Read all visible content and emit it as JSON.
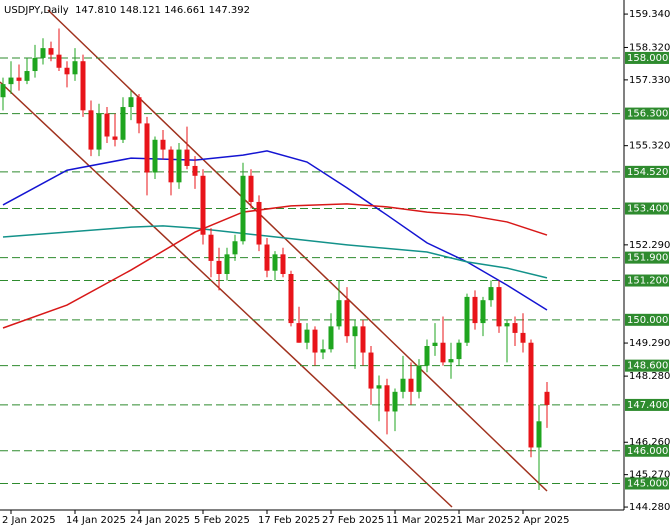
{
  "chart_data": {
    "type": "candlestick",
    "title": "USDJPY,Daily  147.810 148.121 146.661 147.392",
    "categories": [
      null,
      "2 Jan 2025",
      null,
      null,
      null,
      null,
      null,
      null,
      null,
      "14 Jan 2025",
      null,
      null,
      null,
      null,
      null,
      null,
      null,
      "24 Jan 2025",
      null,
      null,
      null,
      null,
      null,
      null,
      null,
      "5 Feb 2025",
      null,
      null,
      null,
      null,
      null,
      null,
      null,
      "17 Feb 2025",
      null,
      null,
      null,
      null,
      null,
      null,
      null,
      "27 Feb 2025",
      null,
      null,
      null,
      null,
      null,
      null,
      null,
      "11 Mar 2025",
      null,
      null,
      null,
      null,
      null,
      null,
      null,
      "21 Mar 2025",
      null,
      null,
      null,
      null,
      null,
      null,
      null,
      "2 Apr 2025",
      null,
      null,
      null
    ],
    "open": [
      156.8,
      157.2,
      157.4,
      157.3,
      157.6,
      158.0,
      158.3,
      158.1,
      157.7,
      157.5,
      157.9,
      156.4,
      155.2,
      156.3,
      155.6,
      155.5,
      156.5,
      156.8,
      156.0,
      154.5,
      155.5,
      155.2,
      154.2,
      155.2,
      154.7,
      154.4,
      152.6,
      151.8,
      151.4,
      152.0,
      152.4,
      154.4,
      153.6,
      152.3,
      151.5,
      152.0,
      151.4,
      149.9,
      149.3,
      149.7,
      149.0,
      149.1,
      149.8,
      150.6,
      149.5,
      149.8,
      149.0,
      147.9,
      148.0,
      147.2,
      147.8,
      148.2,
      147.8,
      148.6,
      149.2,
      149.3,
      148.7,
      148.8,
      149.3,
      150.7,
      149.9,
      150.6,
      151.0,
      149.8,
      149.9,
      149.6,
      149.3,
      146.1,
      147.8
    ],
    "high": [
      157.4,
      157.9,
      157.8,
      158.0,
      158.4,
      158.6,
      158.5,
      158.9,
      157.9,
      158.3,
      158.1,
      156.7,
      156.6,
      156.5,
      156.3,
      156.8,
      157.0,
      156.9,
      156.2,
      155.6,
      155.8,
      155.3,
      155.4,
      155.9,
      155.0,
      154.6,
      152.8,
      152.2,
      152.2,
      152.6,
      154.8,
      154.6,
      153.8,
      152.5,
      152.1,
      152.2,
      151.5,
      150.4,
      149.9,
      149.8,
      149.4,
      150.2,
      151.2,
      151.0,
      150.0,
      150.0,
      149.2,
      148.3,
      148.2,
      147.9,
      148.9,
      148.7,
      148.8,
      149.4,
      149.9,
      150.1,
      149.3,
      149.4,
      150.8,
      150.9,
      150.7,
      151.2,
      151.2,
      150.0,
      150.1,
      150.2,
      149.4,
      147.4,
      148.1
    ],
    "low": [
      156.4,
      156.9,
      157.0,
      157.2,
      157.4,
      157.8,
      157.9,
      157.6,
      157.1,
      157.3,
      156.2,
      155.0,
      155.0,
      155.4,
      155.3,
      155.4,
      156.1,
      155.7,
      153.8,
      154.3,
      154.9,
      153.8,
      154.0,
      154.6,
      154.0,
      152.3,
      151.3,
      150.9,
      151.2,
      151.8,
      152.3,
      153.4,
      152.1,
      151.3,
      151.2,
      151.3,
      149.8,
      149.3,
      149.1,
      148.6,
      148.8,
      149.0,
      149.7,
      149.3,
      148.5,
      148.6,
      147.4,
      146.9,
      146.5,
      146.6,
      147.6,
      147.4,
      147.6,
      148.4,
      148.9,
      148.6,
      148.2,
      148.6,
      149.2,
      149.7,
      149.5,
      150.4,
      149.6,
      148.7,
      149.2,
      149.0,
      145.8,
      144.8,
      146.7
    ],
    "close": [
      157.2,
      157.4,
      157.3,
      157.6,
      158.0,
      158.3,
      158.1,
      157.7,
      157.5,
      157.9,
      156.4,
      155.2,
      156.3,
      155.6,
      155.5,
      156.5,
      156.8,
      156.0,
      154.5,
      155.5,
      155.2,
      154.2,
      155.2,
      154.7,
      154.4,
      152.6,
      151.8,
      151.4,
      152.0,
      152.4,
      154.4,
      153.6,
      152.3,
      151.5,
      152.0,
      151.4,
      149.9,
      149.3,
      149.7,
      149.0,
      149.1,
      149.8,
      150.6,
      149.5,
      149.8,
      149.0,
      147.9,
      148.0,
      147.2,
      147.8,
      148.2,
      147.8,
      148.6,
      149.2,
      149.3,
      148.7,
      148.8,
      149.3,
      150.7,
      149.9,
      150.6,
      151.0,
      149.8,
      149.9,
      149.6,
      149.3,
      146.1,
      146.9,
      147.4
    ],
    "up_color": "#1fa51f",
    "down_color": "#e8141a",
    "lines": [
      {
        "color": "#1414d2",
        "x": [
          0,
          8,
          16,
          24,
          30,
          33,
          38,
          43,
          48,
          53,
          58,
          63,
          68
        ],
        "values": [
          153.51,
          154.57,
          154.94,
          154.88,
          155.03,
          155.16,
          154.82,
          154.03,
          153.2,
          152.35,
          151.77,
          151.06,
          150.3
        ]
      },
      {
        "color": "#13928a",
        "x": [
          0,
          16,
          20,
          24,
          33,
          43,
          53,
          58,
          63,
          68
        ],
        "values": [
          152.53,
          152.83,
          152.87,
          152.8,
          152.56,
          152.29,
          152.07,
          151.77,
          151.58,
          151.28
        ]
      },
      {
        "color": "#d81818",
        "x": [
          0,
          8,
          16,
          24,
          30,
          36,
          43,
          48,
          53,
          58,
          63,
          68
        ],
        "values": [
          149.75,
          150.45,
          151.52,
          152.68,
          153.29,
          153.48,
          153.54,
          153.45,
          153.29,
          153.2,
          152.99,
          152.59
        ]
      }
    ],
    "levels": [
      {
        "value": 158.0,
        "label": "158.000"
      },
      {
        "value": 156.3,
        "label": "156.300"
      },
      {
        "value": 154.52,
        "label": "154.520"
      },
      {
        "value": 153.4,
        "label": "153.400"
      },
      {
        "value": 151.9,
        "label": "151.900"
      },
      {
        "value": 151.2,
        "label": "151.200"
      },
      {
        "value": 150.0,
        "label": "150.000"
      },
      {
        "value": 148.6,
        "label": "148.600"
      },
      {
        "value": 147.4,
        "label": "147.400"
      },
      {
        "value": 146.0,
        "label": "146.000"
      },
      {
        "value": 145.0,
        "label": "145.000"
      }
    ],
    "level_color": "#2e8b2e",
    "ylim": [
      144.19,
      159.77
    ],
    "yticks": [
      {
        "value": 159.34,
        "label": "159.340"
      },
      {
        "value": 158.32,
        "label": "158.320"
      },
      {
        "value": 157.33,
        "label": "157.330"
      },
      {
        "value": 155.32,
        "label": "155.320"
      },
      {
        "value": 152.29,
        "label": "152.290"
      },
      {
        "value": 149.29,
        "label": "149.290"
      },
      {
        "value": 148.28,
        "label": "148.280"
      },
      {
        "value": 146.26,
        "label": "146.260"
      },
      {
        "value": 145.27,
        "label": "145.270"
      },
      {
        "value": 144.28,
        "label": "144.280"
      }
    ]
  }
}
